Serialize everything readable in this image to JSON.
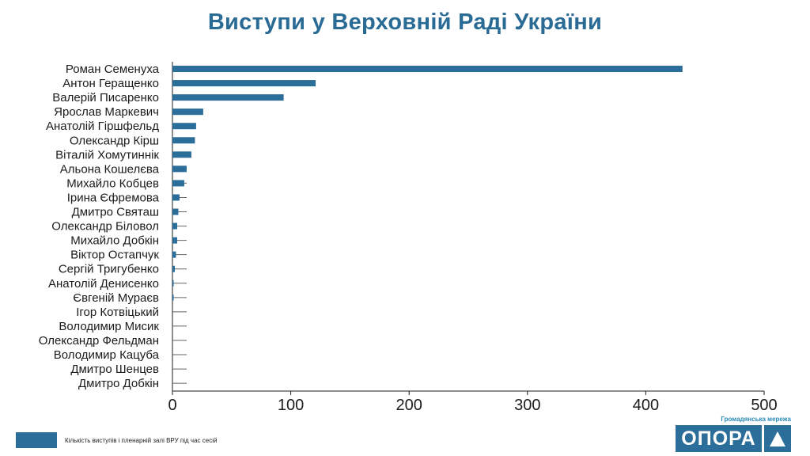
{
  "chart_data": {
    "type": "bar",
    "orientation": "horizontal",
    "title": "Виступи у Верховній Раді України",
    "categories": [
      "Роман Семенуха",
      "Антон Геращенко",
      "Валерій Писаренко",
      "Ярослав Маркевич",
      "Анатолій Гіршфельд",
      "Олександр Кірш",
      "Віталій Хомутиннік",
      "Альона Кошелєва",
      "Михайло Кобцев",
      "Ірина Єфремова",
      "Дмитро Святаш",
      "Олександр Біловол",
      "Михайло Добкін",
      "Віктор Остапчук",
      "Сергій Тригубенко",
      "Анатолій Денисенко",
      "Євгеній Мураєв",
      "Ігор Котвіцький",
      "Володимир Мисик",
      "Олександр Фельдман",
      "Володимир Кацуба",
      "Дмитро Шенцев",
      "Дмитро Добкін"
    ],
    "series": [
      {
        "name": "Кількість виступів і пленарній залі ВРУ під час сесій",
        "values": [
          431,
          121,
          94,
          26,
          20,
          19,
          16,
          12,
          10,
          6,
          5,
          4,
          4,
          3,
          2,
          1,
          1,
          0,
          0,
          0,
          0,
          0,
          0
        ]
      }
    ],
    "xlim": [
      0,
      500
    ],
    "xticks": [
      0,
      100,
      200,
      300,
      400,
      500
    ],
    "grid": false,
    "legend_position": "bottom-left"
  },
  "colors": {
    "bar": "#2c6e9a",
    "title": "#2a6b95",
    "brand": "#2c6e9a",
    "brand_sub": "#2a8ab8"
  },
  "brand": {
    "tagline": "Громадянська мережа",
    "name": "ОПОРА",
    "icon": "triangle-logo-icon"
  }
}
